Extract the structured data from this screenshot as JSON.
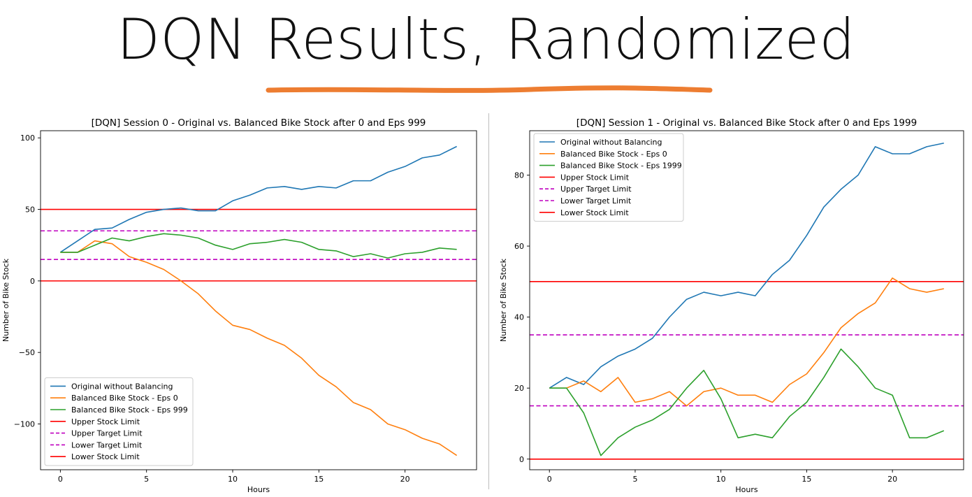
{
  "slide": {
    "title": "DQN Results, Randomized",
    "underline_color": "#ed7d31"
  },
  "colors": {
    "blue": "#1f77b4",
    "orange": "#ff7f0e",
    "green": "#2ca02c",
    "red": "#ff0000",
    "magenta": "#bf00bf"
  },
  "chart_data": [
    {
      "type": "line",
      "title": "[DQN] Session 0 - Original vs. Balanced Bike Stock after 0 and Eps 999",
      "xlabel": "Hours",
      "ylabel": "Number of Bike Stock",
      "xlim": [
        -1.15,
        24.15
      ],
      "ylim": [
        -132,
        105
      ],
      "xticks": [
        0,
        5,
        10,
        15,
        20
      ],
      "yticks": [
        -100,
        -50,
        0,
        50,
        100
      ],
      "legend_position": "lower-left",
      "x": [
        0,
        1,
        2,
        3,
        4,
        5,
        6,
        7,
        8,
        9,
        10,
        11,
        12,
        13,
        14,
        15,
        16,
        17,
        18,
        19,
        20,
        21,
        22,
        23
      ],
      "series": [
        {
          "name": "Original without Balancing",
          "color": "#1f77b4",
          "style": "solid",
          "values": [
            20,
            28,
            36,
            37,
            43,
            48,
            50,
            51,
            49,
            49,
            56,
            60,
            65,
            66,
            64,
            66,
            65,
            70,
            70,
            76,
            80,
            86,
            88,
            94
          ]
        },
        {
          "name": "Balanced Bike Stock - Eps 0",
          "color": "#ff7f0e",
          "style": "solid",
          "values": [
            20,
            20,
            28,
            26,
            17,
            13,
            8,
            0,
            -9,
            -21,
            -31,
            -34,
            -40,
            -45,
            -54,
            -66,
            -74,
            -85,
            -90,
            -100,
            -104,
            -110,
            -114,
            -122
          ]
        },
        {
          "name": "Balanced Bike Stock - Eps 999",
          "color": "#2ca02c",
          "style": "solid",
          "values": [
            20,
            20,
            25,
            30,
            28,
            31,
            33,
            32,
            30,
            25,
            22,
            26,
            27,
            29,
            27,
            22,
            21,
            17,
            19,
            16,
            19,
            20,
            23,
            22
          ]
        },
        {
          "name": "Upper Stock Limit",
          "color": "#ff0000",
          "style": "solid",
          "hline": 50
        },
        {
          "name": "Upper Target Limit",
          "color": "#bf00bf",
          "style": "dashed",
          "hline": 35
        },
        {
          "name": "Lower Target Limit",
          "color": "#bf00bf",
          "style": "dashed",
          "hline": 15
        },
        {
          "name": "Lower Stock Limit",
          "color": "#ff0000",
          "style": "solid",
          "hline": 0
        }
      ]
    },
    {
      "type": "line",
      "title": "[DQN] Session 1 - Original vs. Balanced Bike Stock after 0 and Eps 1999",
      "xlabel": "Hours",
      "ylabel": "Number of Bike Stock",
      "xlim": [
        -1.15,
        24.15
      ],
      "ylim": [
        -3,
        92.5
      ],
      "xticks": [
        0,
        5,
        10,
        15,
        20
      ],
      "yticks": [
        0,
        20,
        40,
        60,
        80
      ],
      "legend_position": "upper-left",
      "x": [
        0,
        1,
        2,
        3,
        4,
        5,
        6,
        7,
        8,
        9,
        10,
        11,
        12,
        13,
        14,
        15,
        16,
        17,
        18,
        19,
        20,
        21,
        22,
        23
      ],
      "series": [
        {
          "name": "Original without Balancing",
          "color": "#1f77b4",
          "style": "solid",
          "values": [
            20,
            23,
            21,
            26,
            29,
            31,
            34,
            40,
            45,
            47,
            46,
            47,
            46,
            52,
            56,
            63,
            71,
            76,
            80,
            88,
            86,
            86,
            88,
            89
          ]
        },
        {
          "name": "Balanced Bike Stock - Eps 0",
          "color": "#ff7f0e",
          "style": "solid",
          "values": [
            20,
            20,
            22,
            19,
            23,
            16,
            17,
            19,
            15,
            19,
            20,
            18,
            18,
            16,
            21,
            24,
            30,
            37,
            41,
            44,
            51,
            48,
            47,
            48
          ]
        },
        {
          "name": "Balanced Bike Stock - Eps 1999",
          "color": "#2ca02c",
          "style": "solid",
          "values": [
            20,
            20,
            13,
            1,
            6,
            9,
            11,
            14,
            20,
            25,
            17,
            6,
            7,
            6,
            12,
            16,
            23,
            31,
            26,
            20,
            18,
            6,
            6,
            8
          ]
        },
        {
          "name": "Upper Stock Limit",
          "color": "#ff0000",
          "style": "solid",
          "hline": 50
        },
        {
          "name": "Upper Target Limit",
          "color": "#bf00bf",
          "style": "dashed",
          "hline": 35
        },
        {
          "name": "Lower Target Limit",
          "color": "#bf00bf",
          "style": "dashed",
          "hline": 15
        },
        {
          "name": "Lower Stock Limit",
          "color": "#ff0000",
          "style": "solid",
          "hline": 0
        }
      ]
    }
  ]
}
